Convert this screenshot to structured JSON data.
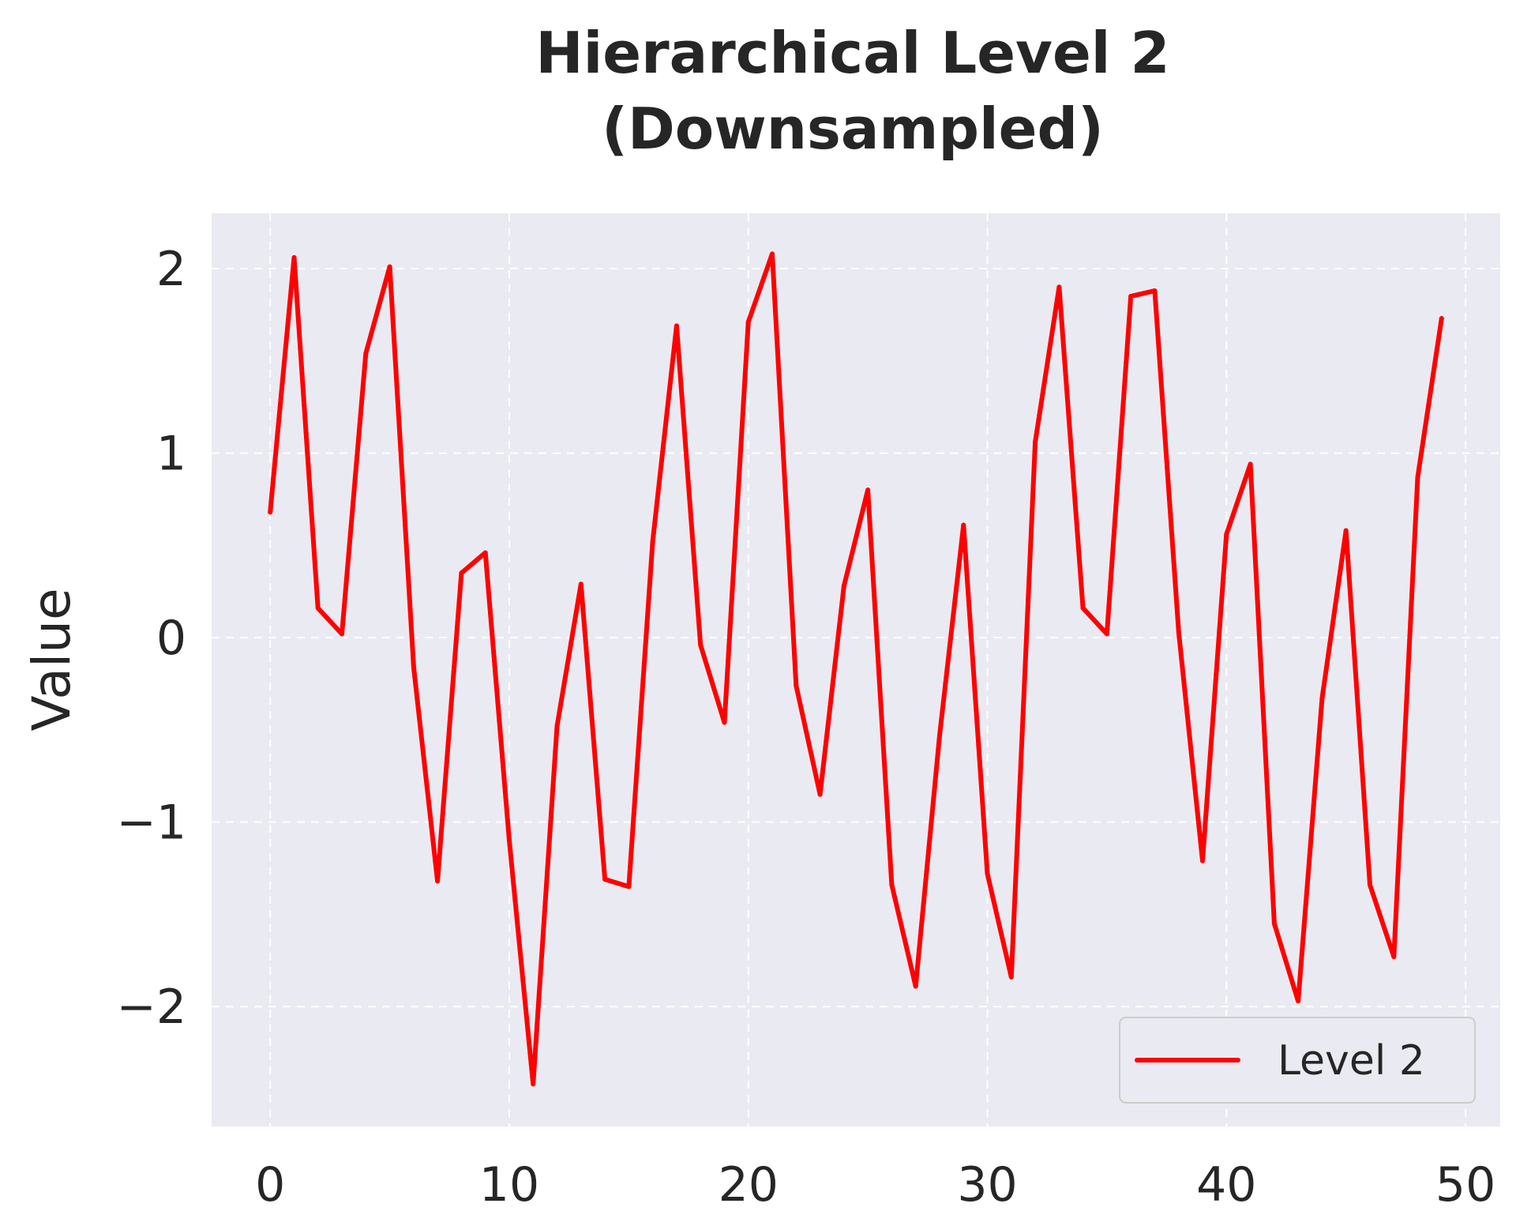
{
  "chart_data": {
    "type": "line",
    "title": [
      "Hierarchical Level 2",
      "(Downsampled)"
    ],
    "xlabel": "",
    "ylabel": "Value",
    "xlim": [
      -2.45,
      51.45
    ],
    "ylim": [
      -2.65,
      2.3
    ],
    "xticks": [
      0,
      10,
      20,
      30,
      40,
      50
    ],
    "xtick_labels": [
      "0",
      "10",
      "20",
      "30",
      "40",
      "50"
    ],
    "yticks": [
      -2,
      -1,
      0,
      1,
      2
    ],
    "ytick_labels": [
      "−2",
      "−1",
      "0",
      "1",
      "2"
    ],
    "grid": true,
    "legend_position": "lower-right",
    "colors": {
      "plot_background": "#eaeaf2",
      "grid": "#ffffff",
      "line": "#ff0000",
      "legend_border": "#cccccc"
    },
    "series": [
      {
        "name": "Level 2",
        "x": [
          0,
          1,
          2,
          3,
          4,
          5,
          6,
          7,
          8,
          9,
          10,
          11,
          12,
          13,
          14,
          15,
          16,
          17,
          18,
          19,
          20,
          21,
          22,
          23,
          24,
          25,
          26,
          27,
          28,
          29,
          30,
          31,
          32,
          33,
          34,
          35,
          36,
          37,
          38,
          39,
          40,
          41,
          42,
          43,
          44,
          45,
          46,
          47,
          48,
          49
        ],
        "values": [
          0.68,
          2.06,
          0.16,
          0.02,
          1.54,
          2.01,
          -0.16,
          -1.32,
          0.35,
          0.46,
          -1.1,
          -2.42,
          -0.48,
          0.29,
          -1.31,
          -1.35,
          0.52,
          1.69,
          -0.04,
          -0.46,
          1.71,
          2.08,
          -0.26,
          -0.85,
          0.28,
          0.8,
          -1.34,
          -1.89,
          -0.53,
          0.61,
          -1.28,
          -1.84,
          1.06,
          1.9,
          0.16,
          0.02,
          1.85,
          1.88,
          0.03,
          -1.21,
          0.56,
          0.94,
          -1.55,
          -1.97,
          -0.33,
          0.58,
          -1.34,
          -1.73,
          0.87,
          1.73
        ]
      }
    ]
  }
}
